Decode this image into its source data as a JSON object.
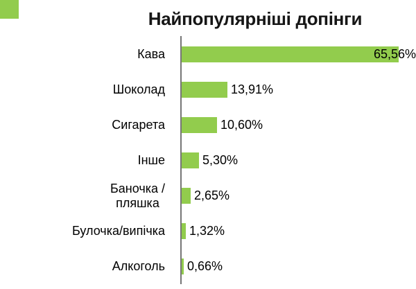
{
  "title": "Найпопулярніші допінги",
  "accent_color": "#92CC4D",
  "axis_color": "#767676",
  "corner_mark": {
    "color": "#92CC4D"
  },
  "chart_data": {
    "type": "bar",
    "orientation": "horizontal",
    "title": "Найпопулярніші допінги",
    "categories": [
      "Кава",
      "Шоколад",
      "Сигарета",
      "Інше",
      "Баночка /\nпляшка",
      "Булочка/випічка",
      "Алкоголь"
    ],
    "values": [
      65.56,
      13.91,
      10.6,
      5.3,
      2.65,
      1.32,
      0.66
    ],
    "value_labels": [
      "65,56%",
      "13,91%",
      "10,60%",
      "5,30%",
      "2,65%",
      "1,32%",
      "0,66%"
    ],
    "xlabel": "",
    "ylabel": "",
    "xlim": [
      0,
      70
    ],
    "grid": false,
    "legend": false,
    "bar_color": "#92CC4D",
    "value_label_position": "outside-end"
  }
}
